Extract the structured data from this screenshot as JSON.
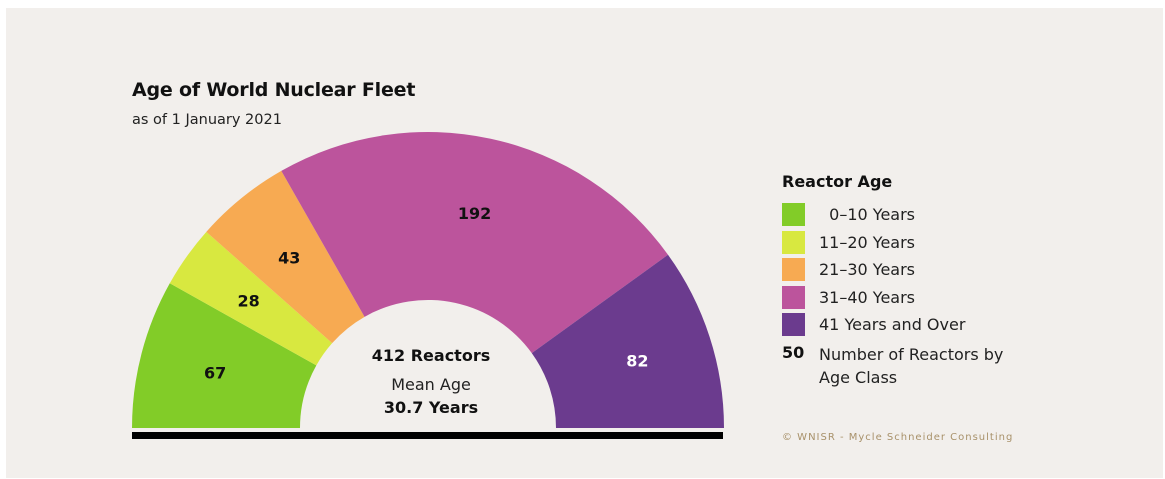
{
  "title": "Age of World Nuclear Fleet",
  "subtitle": "as of 1 January 2021",
  "center": {
    "total": "412 Reactors",
    "mean_label": "Mean Age",
    "mean_value": "30.7 Years"
  },
  "legend": {
    "title": "Reactor Age",
    "items": [
      {
        "label": "  0–10 Years",
        "color": "#82cc28"
      },
      {
        "label": "11–20 Years",
        "color": "#d8e840"
      },
      {
        "label": "21–30 Years",
        "color": "#f7aa52"
      },
      {
        "label": "31–40 Years",
        "color": "#bc549c"
      },
      {
        "label": "41 Years and Over",
        "color": "#6b3b8e"
      }
    ],
    "note_number": "50",
    "note_label": "Number of Reactors by Age Class"
  },
  "credit": "© WNISR - Mycle Schneider Consulting",
  "chart_data": {
    "type": "pie",
    "style": "half-donut",
    "categories": [
      "0–10 Years",
      "11–20 Years",
      "21–30 Years",
      "31–40 Years",
      "41 Years and Over"
    ],
    "values": [
      67,
      28,
      43,
      192,
      82
    ],
    "colors": [
      "#82cc28",
      "#d8e840",
      "#f7aa52",
      "#bc549c",
      "#6b3b8e"
    ],
    "label_colors": [
      "#111111",
      "#111111",
      "#111111",
      "#111111",
      "#ffffff"
    ],
    "total": 412,
    "mean_age": 30.7
  }
}
